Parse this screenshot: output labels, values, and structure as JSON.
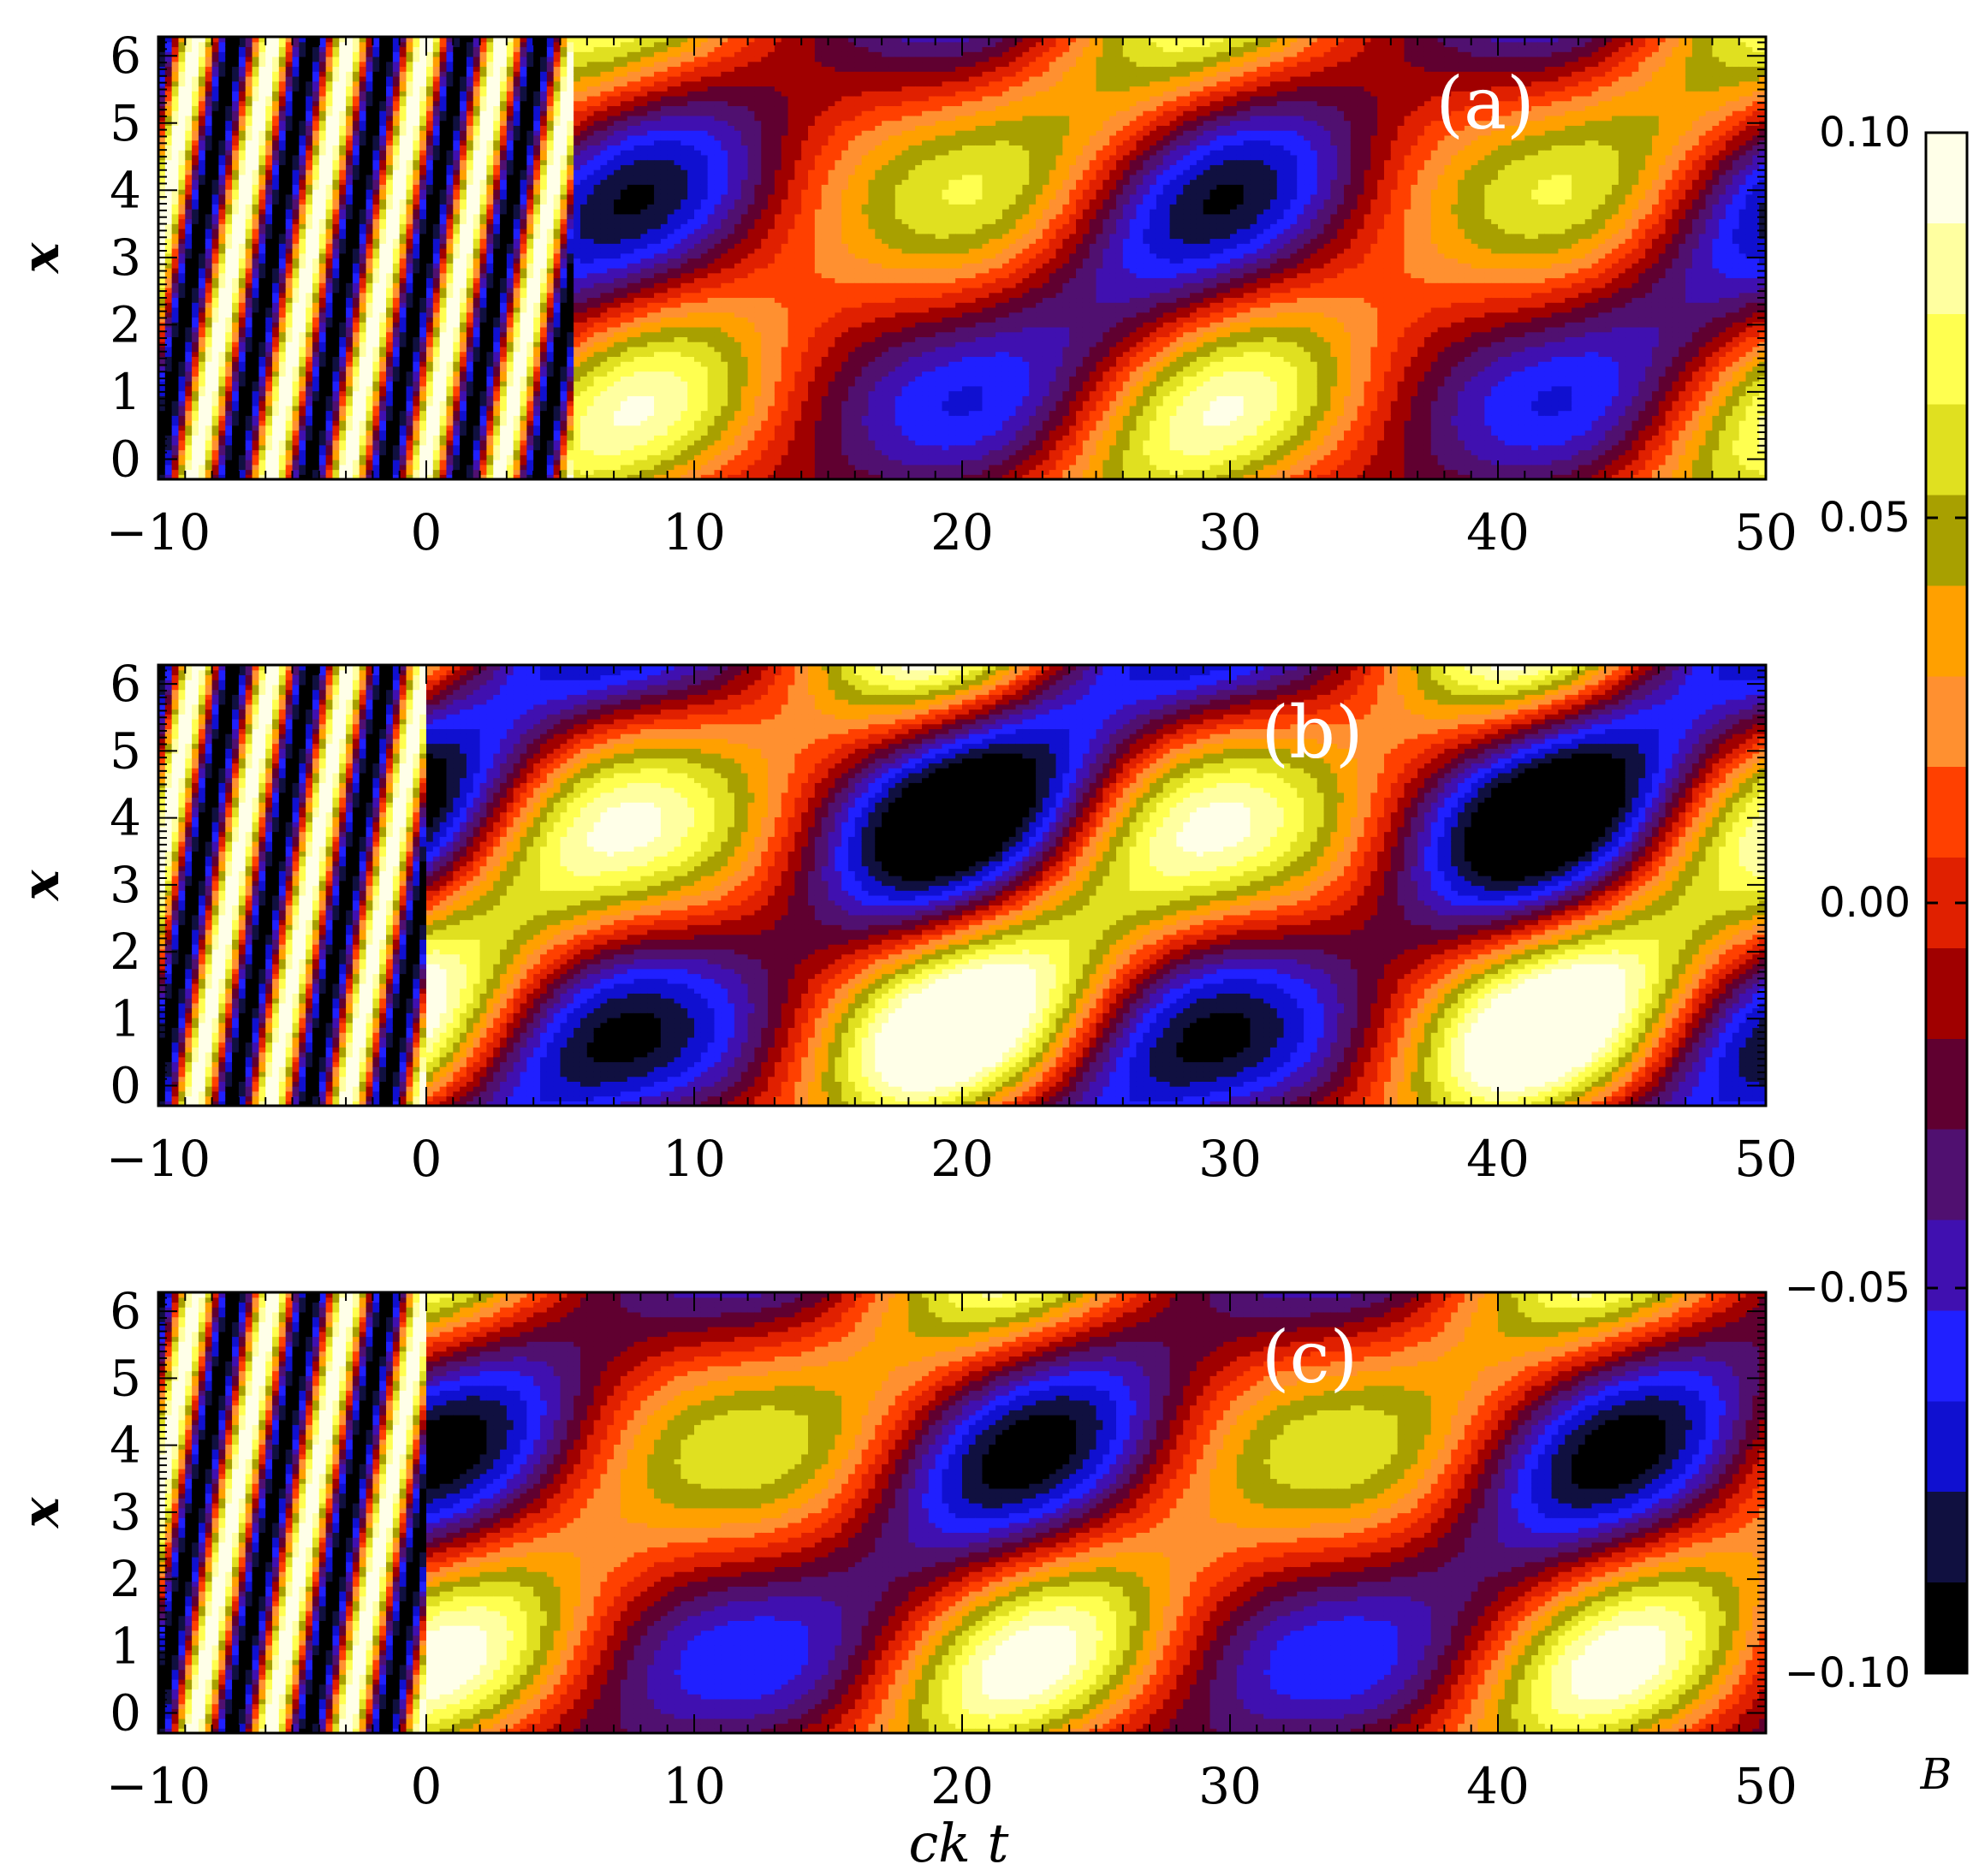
{
  "chart_data": {
    "type": "heatmap",
    "title": "",
    "xlabel": "ck  t",
    "ylabel": "x",
    "colorbar_label": "B",
    "colorbar_range": [
      -0.1,
      0.1
    ],
    "colorbar_ticks": [
      "0.10",
      "0.05",
      "0.00",
      "−0.05",
      "−0.10"
    ],
    "colorbar_tick_values": [
      0.1,
      0.05,
      0.0,
      -0.05,
      -0.1
    ],
    "colormap": [
      "#000000",
      "#101040",
      "#1010d0",
      "#2020ff",
      "#4010b0",
      "#501070",
      "#600030",
      "#a00000",
      "#e02000",
      "#ff4000",
      "#ff9030",
      "#ffa000",
      "#a8a000",
      "#e0e020",
      "#ffff50",
      "#ffffa0",
      "#ffffe8"
    ],
    "panels": [
      {
        "label": "(a)",
        "xlim": [
          -10,
          50
        ],
        "ylim": [
          -0.3,
          6.283
        ],
        "x_ticks": [
          "−10",
          "0",
          "10",
          "20",
          "30",
          "40",
          "50"
        ],
        "x_tick_values": [
          -10,
          0,
          10,
          20,
          30,
          40,
          50
        ],
        "y_ticks": [
          "0",
          "1",
          "2",
          "3",
          "4",
          "5",
          "6"
        ],
        "y_tick_values": [
          0,
          1,
          2,
          3,
          4,
          5,
          6
        ],
        "transition_time": 5.5,
        "incident_amplitude": 0.1,
        "oscillation_amplitude": 0.07,
        "oscillation_period": 22.0,
        "phase_offset": 0.0,
        "mean_level": 0.0
      },
      {
        "label": "(b)",
        "xlim": [
          -10,
          50
        ],
        "ylim": [
          -0.3,
          6.283
        ],
        "x_ticks": [
          "−10",
          "0",
          "10",
          "20",
          "30",
          "40",
          "50"
        ],
        "x_tick_values": [
          -10,
          0,
          10,
          20,
          30,
          40,
          50
        ],
        "y_ticks": [
          "0",
          "1",
          "2",
          "3",
          "4",
          "5",
          "6"
        ],
        "y_tick_values": [
          0,
          1,
          2,
          3,
          4,
          5,
          6
        ],
        "transition_time": 0.0,
        "incident_amplitude": 0.1,
        "oscillation_amplitude": 0.1,
        "oscillation_period": 22.0,
        "phase_offset": 1.57,
        "mean_level": 0.0
      },
      {
        "label": "(c)",
        "xlim": [
          -10,
          50
        ],
        "ylim": [
          -0.3,
          6.283
        ],
        "x_ticks": [
          "−10",
          "0",
          "10",
          "20",
          "30",
          "40",
          "50"
        ],
        "x_tick_values": [
          -10,
          0,
          10,
          20,
          30,
          40,
          50
        ],
        "y_ticks": [
          "0",
          "1",
          "2",
          "3",
          "4",
          "5",
          "6"
        ],
        "y_tick_values": [
          0,
          1,
          2,
          3,
          4,
          5,
          6
        ],
        "transition_time": 0.0,
        "incident_amplitude": 0.1,
        "oscillation_amplitude": 0.075,
        "oscillation_period": 22.0,
        "phase_offset": 0.6,
        "mean_level": 0.0
      }
    ]
  }
}
